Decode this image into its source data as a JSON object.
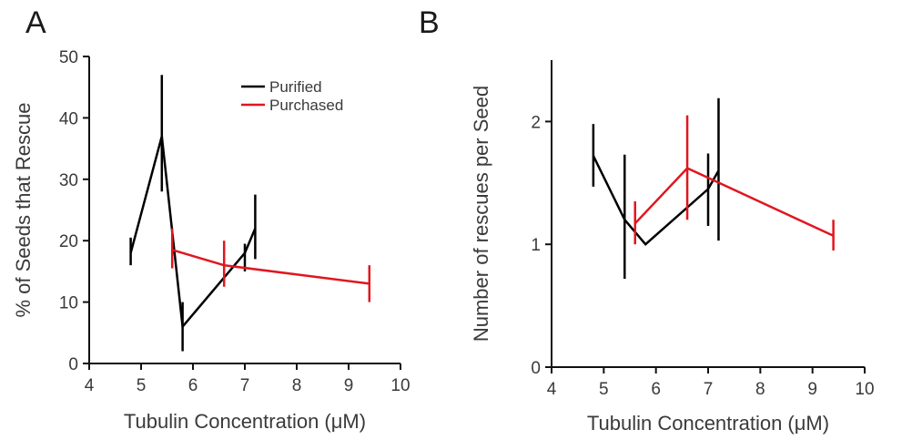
{
  "chart_data": [
    {
      "type": "line",
      "panel_label": "A",
      "xlabel": "Tubulin Concentration (μM)",
      "ylabel": "% of Seeds that Rescue",
      "xlim": [
        4,
        10
      ],
      "ylim": [
        0,
        50
      ],
      "xticks": [
        4,
        5,
        6,
        7,
        8,
        9,
        10
      ],
      "yticks": [
        0,
        10,
        20,
        30,
        40,
        50
      ],
      "legend": {
        "placement": "top-right"
      },
      "grid": false,
      "series": [
        {
          "name": "Purified",
          "color": "#000000",
          "x": [
            4.8,
            5.4,
            5.8,
            7.0,
            7.2
          ],
          "y": [
            18,
            37,
            6,
            18,
            22
          ],
          "err_low": [
            16,
            28,
            2,
            15,
            17
          ],
          "err_high": [
            20.5,
            47,
            10,
            19.5,
            27.5
          ]
        },
        {
          "name": "Purchased",
          "color": "#e0161f",
          "x": [
            5.6,
            6.6,
            9.4
          ],
          "y": [
            18.5,
            16,
            13
          ],
          "err_low": [
            15.5,
            12.5,
            10
          ],
          "err_high": [
            22,
            20,
            16
          ]
        }
      ]
    },
    {
      "type": "line",
      "panel_label": "B",
      "xlabel": "Tubulin Concentration (μM)",
      "ylabel": "Number of rescues per Seed",
      "xlim": [
        4,
        10
      ],
      "ylim": [
        0,
        2.5
      ],
      "xticks": [
        4,
        5,
        6,
        7,
        8,
        9,
        10
      ],
      "yticks": [
        0,
        1,
        2
      ],
      "grid": false,
      "series": [
        {
          "name": "Purified",
          "color": "#000000",
          "x": [
            4.8,
            5.4,
            5.8,
            7.0,
            7.2
          ],
          "y": [
            1.72,
            1.2,
            1.0,
            1.45,
            1.6
          ],
          "err_low": [
            1.47,
            0.72,
            1.0,
            1.15,
            1.03
          ],
          "err_high": [
            1.98,
            1.73,
            1.0,
            1.74,
            2.19
          ]
        },
        {
          "name": "Purchased",
          "color": "#e0161f",
          "x": [
            5.6,
            6.6,
            9.4
          ],
          "y": [
            1.17,
            1.62,
            1.07
          ],
          "err_low": [
            1.0,
            1.2,
            0.95
          ],
          "err_high": [
            1.35,
            2.05,
            1.2
          ]
        }
      ]
    }
  ]
}
